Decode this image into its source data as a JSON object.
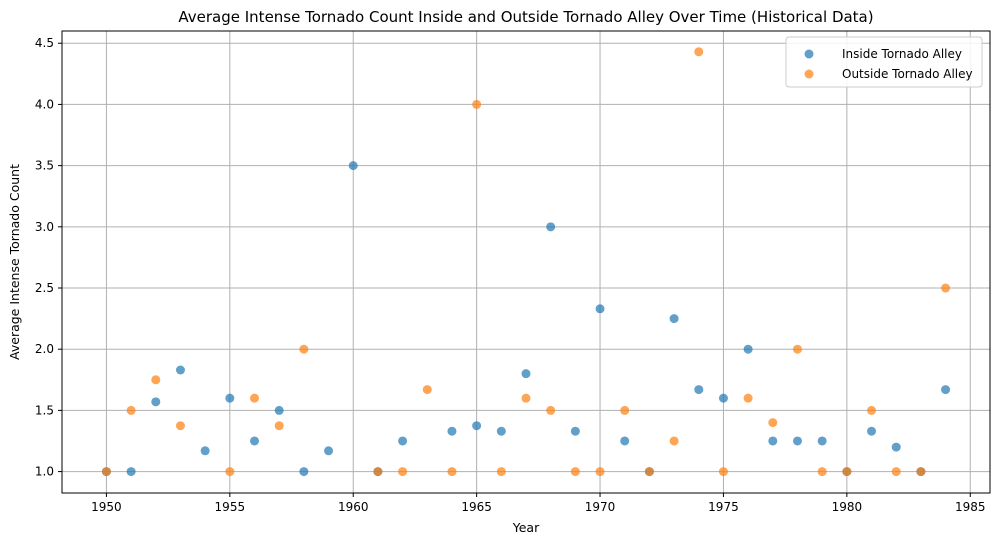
{
  "chart_data": {
    "type": "scatter",
    "title": "Average Intense Tornado Count Inside and Outside Tornado Alley Over Time (Historical Data)",
    "xlabel": "Year",
    "ylabel": "Average Intense Tornado Count",
    "xlim": [
      1948.2,
      1985.8
    ],
    "ylim": [
      0.825,
      4.6
    ],
    "x_ticks": [
      1950,
      1955,
      1960,
      1965,
      1970,
      1975,
      1980,
      1985
    ],
    "y_ticks": [
      1.0,
      1.5,
      2.0,
      2.5,
      3.0,
      3.5,
      4.0,
      4.5
    ],
    "y_tick_labels": [
      "1.0",
      "1.5",
      "2.0",
      "2.5",
      "3.0",
      "3.5",
      "4.0",
      "4.5"
    ],
    "grid": true,
    "legend_position": "top-right",
    "series": [
      {
        "name": "Inside Tornado Alley",
        "color": "#1f77b4",
        "points": [
          [
            1950,
            1.0
          ],
          [
            1951,
            1.0
          ],
          [
            1952,
            1.57
          ],
          [
            1953,
            1.83
          ],
          [
            1954,
            1.17
          ],
          [
            1955,
            1.6
          ],
          [
            1956,
            1.25
          ],
          [
            1957,
            1.5
          ],
          [
            1958,
            1.0
          ],
          [
            1959,
            1.17
          ],
          [
            1960,
            3.5
          ],
          [
            1961,
            1.0
          ],
          [
            1962,
            1.25
          ],
          [
            1964,
            1.33
          ],
          [
            1965,
            1.375
          ],
          [
            1966,
            1.33
          ],
          [
            1967,
            1.8
          ],
          [
            1968,
            3.0
          ],
          [
            1969,
            1.33
          ],
          [
            1970,
            2.33
          ],
          [
            1971,
            1.25
          ],
          [
            1972,
            1.0
          ],
          [
            1973,
            2.25
          ],
          [
            1974,
            1.67
          ],
          [
            1975,
            1.6
          ],
          [
            1976,
            2.0
          ],
          [
            1977,
            1.25
          ],
          [
            1978,
            1.25
          ],
          [
            1979,
            1.25
          ],
          [
            1980,
            1.0
          ],
          [
            1981,
            1.33
          ],
          [
            1982,
            1.2
          ],
          [
            1983,
            1.0
          ],
          [
            1984,
            1.67
          ]
        ]
      },
      {
        "name": "Outside Tornado Alley",
        "color": "#ff7f0e",
        "points": [
          [
            1950,
            1.0
          ],
          [
            1951,
            1.5
          ],
          [
            1952,
            1.75
          ],
          [
            1953,
            1.375
          ],
          [
            1955,
            1.0
          ],
          [
            1956,
            1.6
          ],
          [
            1957,
            1.375
          ],
          [
            1958,
            2.0
          ],
          [
            1961,
            1.0
          ],
          [
            1962,
            1.0
          ],
          [
            1963,
            1.67
          ],
          [
            1964,
            1.0
          ],
          [
            1965,
            4.0
          ],
          [
            1966,
            1.0
          ],
          [
            1967,
            1.6
          ],
          [
            1968,
            1.5
          ],
          [
            1969,
            1.0
          ],
          [
            1970,
            1.0
          ],
          [
            1971,
            1.5
          ],
          [
            1972,
            1.0
          ],
          [
            1973,
            1.25
          ],
          [
            1974,
            4.43
          ],
          [
            1975,
            1.0
          ],
          [
            1976,
            1.6
          ],
          [
            1977,
            1.4
          ],
          [
            1978,
            2.0
          ],
          [
            1979,
            1.0
          ],
          [
            1980,
            1.0
          ],
          [
            1981,
            1.5
          ],
          [
            1982,
            1.0
          ],
          [
            1983,
            1.0
          ],
          [
            1984,
            2.5
          ]
        ]
      }
    ]
  }
}
